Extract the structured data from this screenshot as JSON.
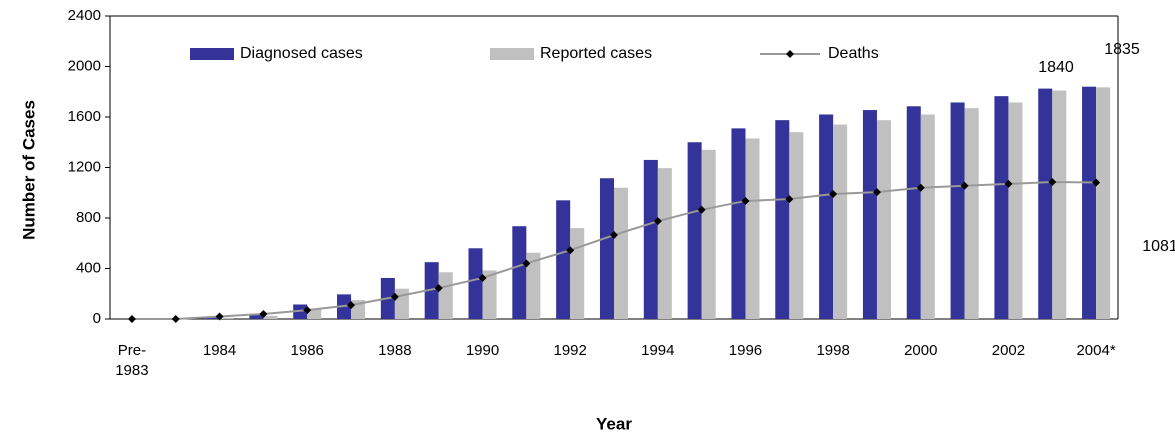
{
  "chart_data": {
    "type": "bar",
    "ylabel": "Number of Cases",
    "xlabel": "Year",
    "categories": [
      "Pre-1983",
      null,
      "1984",
      null,
      "1986",
      null,
      "1988",
      null,
      "1990",
      null,
      "1992",
      null,
      "1994",
      null,
      "1996",
      null,
      "1998",
      null,
      "2000",
      null,
      "2002",
      null,
      "2004*"
    ],
    "series": [
      {
        "name": "Diagnosed cases",
        "color": "#333399",
        "kind": "bar",
        "values": [
          0,
          5,
          15,
          35,
          115,
          195,
          325,
          450,
          560,
          735,
          940,
          1115,
          1260,
          1400,
          1510,
          1575,
          1620,
          1655,
          1685,
          1715,
          1765,
          1825,
          1840
        ]
      },
      {
        "name": "Reported cases",
        "color": "#c0c0c0",
        "kind": "bar",
        "values": [
          0,
          2,
          10,
          25,
          80,
          150,
          240,
          370,
          385,
          525,
          720,
          1040,
          1195,
          1340,
          1430,
          1480,
          1540,
          1575,
          1620,
          1670,
          1715,
          1810,
          1835
        ]
      },
      {
        "name": "Deaths",
        "color": "#999999",
        "marker_color": "#000000",
        "kind": "line",
        "values": [
          0,
          0,
          20,
          40,
          70,
          110,
          175,
          245,
          325,
          440,
          545,
          665,
          775,
          865,
          935,
          950,
          990,
          1005,
          1040,
          1055,
          1070,
          1085,
          1081
        ]
      }
    ],
    "ylim": [
      0,
      2400
    ],
    "yticks": [
      0,
      400,
      800,
      1200,
      1600,
      2000,
      2400
    ],
    "grid": false
  }
}
